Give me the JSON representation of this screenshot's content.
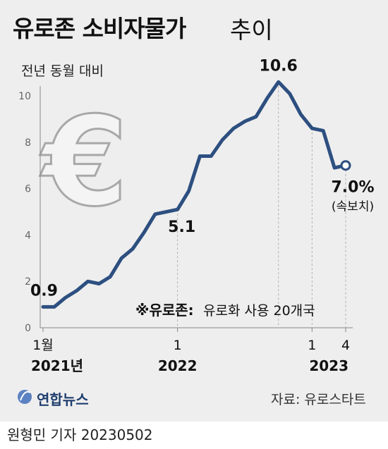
{
  "header": {
    "title": "유로존 소비자물가",
    "title_suffix": "추이",
    "unit": "전년 동월 대비"
  },
  "note": {
    "prefix": "※유로존:",
    "text": "유로화 사용 20개국"
  },
  "footer": {
    "agency": "연합뉴스",
    "source": "자료: 유로스타트",
    "byline": "원형민 기자  20230502"
  },
  "colors": {
    "line": "#2d4f80",
    "background": "#eeeeee",
    "grid": "#bbbbbb"
  },
  "icons": {
    "currency": "euro-symbol-icon",
    "logo": "yonhap-logo-icon"
  },
  "chart_data": {
    "type": "line",
    "ylabel": "전년 동월 대비",
    "ylim": [
      0,
      12
    ],
    "yticks": [
      0,
      2,
      4,
      6,
      8,
      10
    ],
    "grid": false,
    "x": [
      "2021-01",
      "2021-02",
      "2021-03",
      "2021-04",
      "2021-05",
      "2021-06",
      "2021-07",
      "2021-08",
      "2021-09",
      "2021-10",
      "2021-11",
      "2021-12",
      "2022-01",
      "2022-02",
      "2022-03",
      "2022-04",
      "2022-05",
      "2022-06",
      "2022-07",
      "2022-08",
      "2022-09",
      "2022-10",
      "2022-11",
      "2022-12",
      "2023-01",
      "2023-02",
      "2023-03",
      "2023-04"
    ],
    "values": [
      0.9,
      0.9,
      1.3,
      1.6,
      2.0,
      1.9,
      2.2,
      3.0,
      3.4,
      4.1,
      4.9,
      5.0,
      5.1,
      5.9,
      7.4,
      7.4,
      8.1,
      8.6,
      8.9,
      9.1,
      9.9,
      10.6,
      10.1,
      9.2,
      8.6,
      8.5,
      6.9,
      7.0
    ],
    "xtick_labels": [
      {
        "x": "2021-01",
        "month": "1월",
        "year": "2021년"
      },
      {
        "x": "2022-01",
        "month": "1",
        "year": "2022"
      },
      {
        "x": "2023-01",
        "month": "1",
        "year": ""
      },
      {
        "x": "2023-04",
        "month": "4",
        "year": ""
      }
    ],
    "year_under_range": {
      "label": "2023",
      "from": "2023-01",
      "to": "2023-04"
    },
    "annotations": [
      {
        "x": "2021-01",
        "label": "0.9"
      },
      {
        "x": "2022-01",
        "label": "5.1"
      },
      {
        "x": "2022-10",
        "label": "10.6"
      },
      {
        "x": "2023-04",
        "label": "7.0%",
        "sublabel": "(속보치)",
        "open_marker": true
      }
    ],
    "guides": [
      "2022-01",
      "2022-10",
      "2023-01",
      "2023-04"
    ]
  }
}
